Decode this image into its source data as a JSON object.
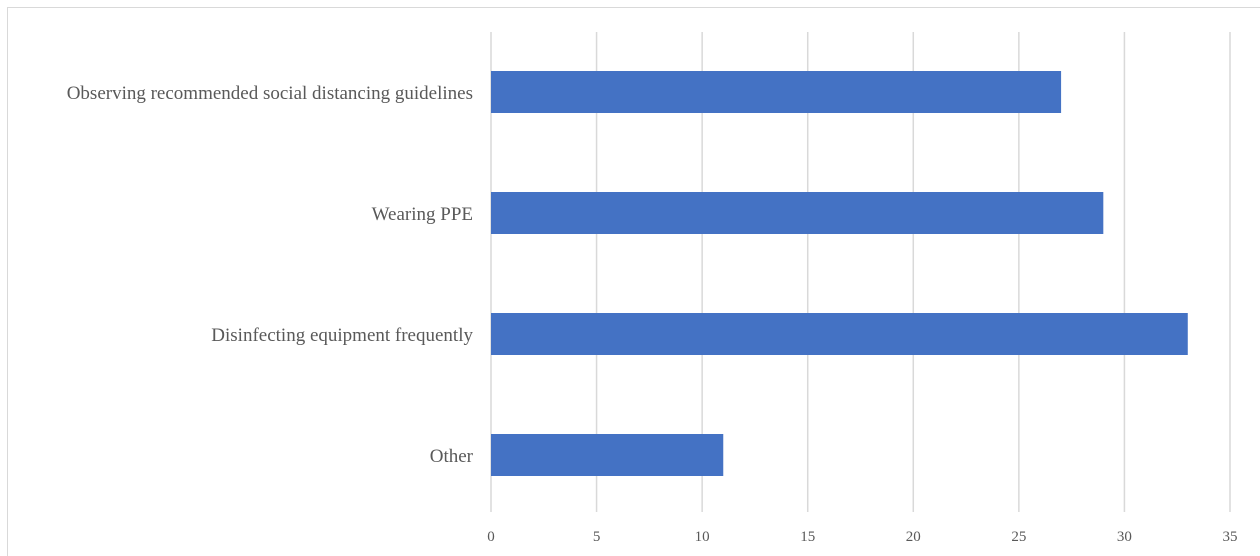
{
  "chart_data": {
    "type": "bar",
    "orientation": "horizontal",
    "title": "",
    "xlabel": "",
    "ylabel": "",
    "categories": [
      "Observing recommended social distancing guidelines",
      "Wearing PPE",
      "Disinfecting equipment frequently",
      "Other"
    ],
    "values": [
      27,
      29,
      33,
      11
    ],
    "xlim": [
      0,
      35
    ],
    "xticks": [
      0,
      5,
      10,
      15,
      20,
      25,
      30,
      35
    ],
    "grid": true,
    "legend": "none",
    "bar_color": "#4472c4",
    "grid_color": "#d9d9d9",
    "text_color": "#595959"
  }
}
